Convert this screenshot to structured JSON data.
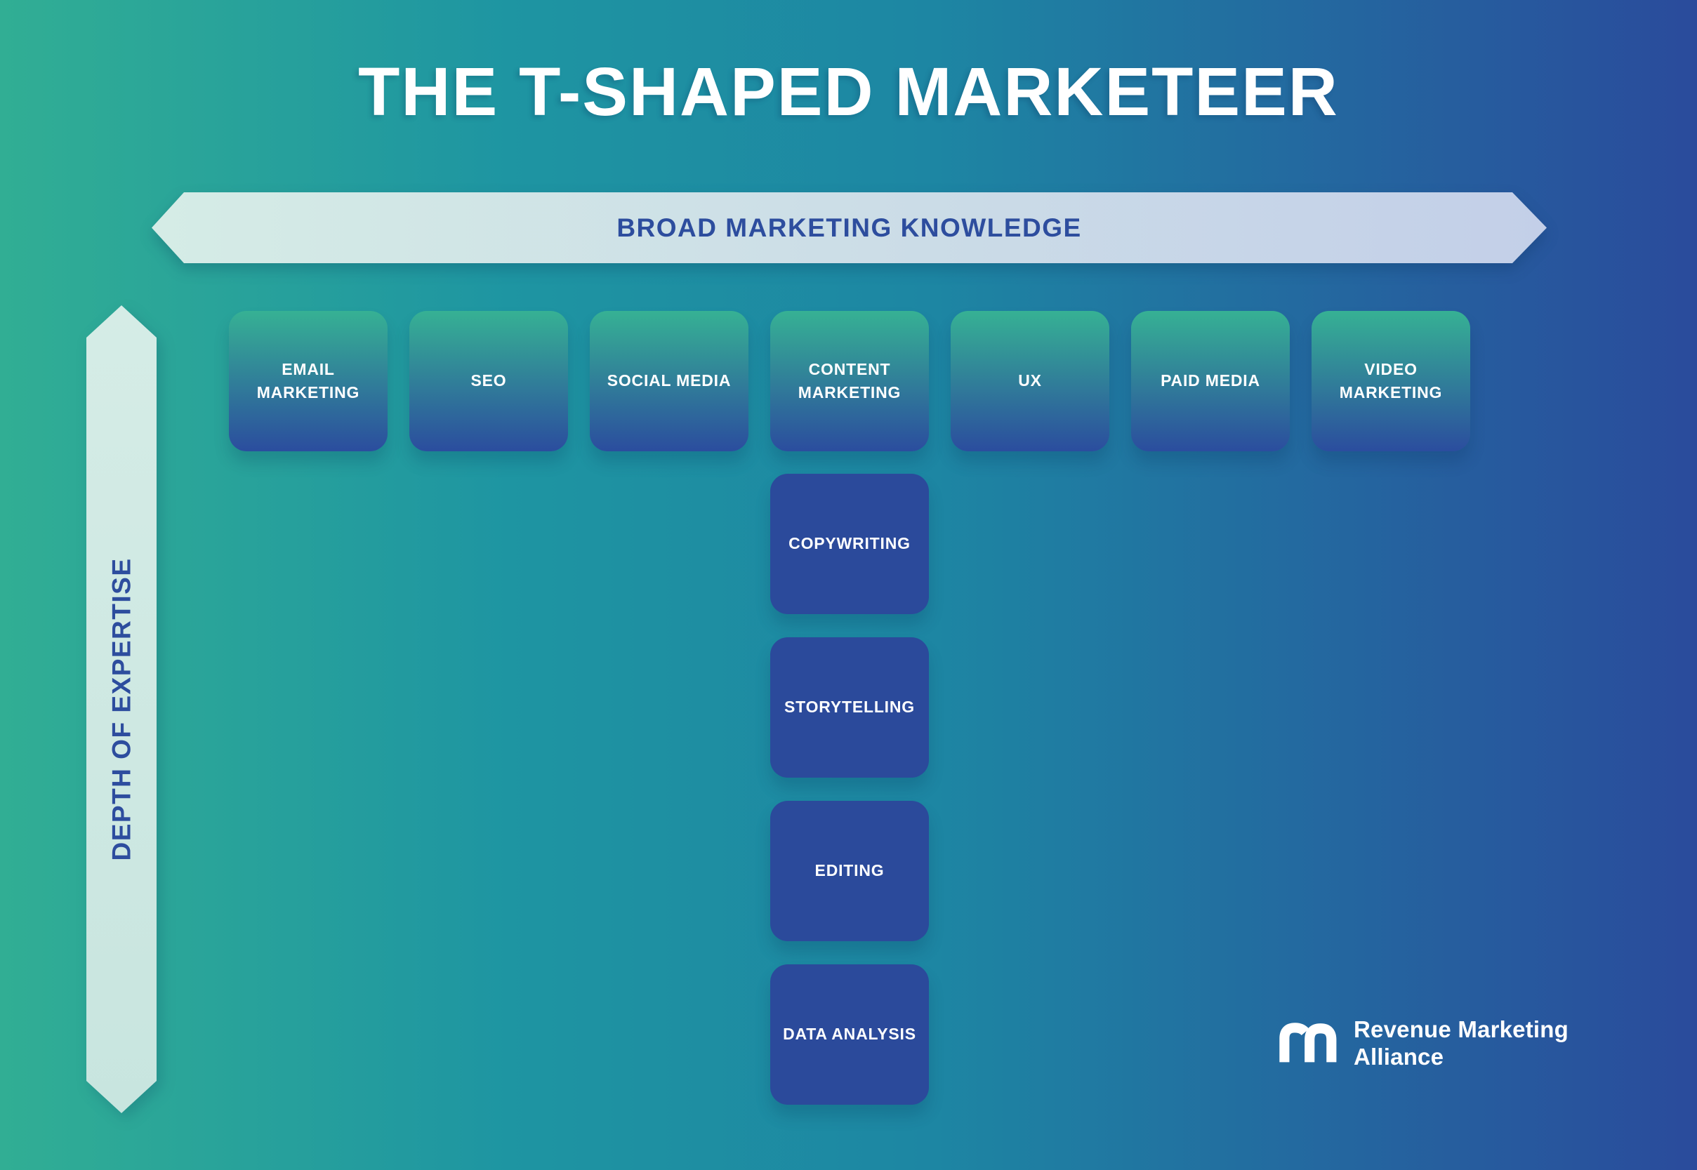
{
  "title": "THE T-SHAPED MARKETEER",
  "axes": {
    "horizontal": {
      "label": "BROAD MARKETING KNOWLEDGE"
    },
    "vertical": {
      "label": "DEPTH OF EXPERTISE"
    }
  },
  "broad_skills": [
    "EMAIL MARKETING",
    "SEO",
    "SOCIAL MEDIA",
    "CONTENT MARKETING",
    "UX",
    "PAID MEDIA",
    "VIDEO MARKETING"
  ],
  "deep_skills": [
    "COPYWRITING",
    "STORYTELLING",
    "EDITING",
    "DATA ANALYSIS"
  ],
  "logo": {
    "line1": "Revenue Marketing",
    "line2": "Alliance",
    "icon": "rn-monogram-icon"
  },
  "colors": {
    "bg_left": "#31ae94",
    "bg_mid": "#1d86a3",
    "bg_right": "#2a4b9c",
    "arrow_light_left": "#d5ece6",
    "arrow_light_right": "#c3cfe8",
    "navy_text": "#2d4d9e",
    "skill_box_top": "#36b194",
    "skill_box_bottom": "#2b4d9e",
    "deep_box": "#2b4a9b",
    "text_white": "#ffffff"
  }
}
